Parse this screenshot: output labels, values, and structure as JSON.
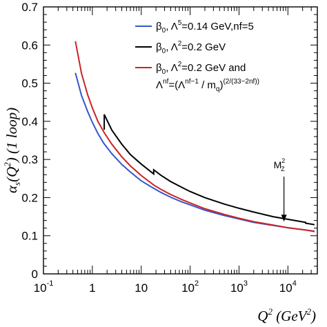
{
  "chart_data": {
    "type": "line",
    "xscale": "log",
    "xlim": [
      0.1,
      40000
    ],
    "ylim": [
      0,
      0.7
    ],
    "grid": false,
    "legend_position": "top-right",
    "xlabel": {
      "main": "Q",
      "sup": "2",
      "unit": " (GeV",
      "unit_sup": "2",
      "close": ")"
    },
    "ylabel": {
      "main": "α",
      "sub": "s",
      "open": "(Q",
      "sup": "2",
      "rest": ") (1 loop)"
    },
    "x_ticks": [
      {
        "base": "10",
        "exp": "-1",
        "value": 0.1
      },
      {
        "base": "1",
        "exp": "",
        "value": 1
      },
      {
        "base": "10",
        "exp": "",
        "value": 10
      },
      {
        "base": "10",
        "exp": "2",
        "value": 100
      },
      {
        "base": "10",
        "exp": "3",
        "value": 1000
      },
      {
        "base": "10",
        "exp": "4",
        "value": 10000
      }
    ],
    "y_ticks": [
      "0",
      "0.1",
      "0.2",
      "0.3",
      "0.4",
      "0.5",
      "0.6",
      "0.7"
    ],
    "y_tick_values": [
      0,
      0.1,
      0.2,
      0.3,
      0.4,
      0.5,
      0.6,
      0.7
    ],
    "series": [
      {
        "legend": {
          "a": "β",
          "a_sub": "0",
          "b": ", Λ",
          "b_sup": "5",
          "c": "=0.14 GeV,nf=5"
        },
        "color": "#3355cc",
        "points": [
          [
            0.45,
            0.527
          ],
          [
            0.6,
            0.468
          ],
          [
            0.8,
            0.426
          ],
          [
            1.0,
            0.397
          ],
          [
            1.3,
            0.368
          ],
          [
            1.7,
            0.343
          ],
          [
            2.5,
            0.315
          ],
          [
            4,
            0.287
          ],
          [
            6,
            0.267
          ],
          [
            10,
            0.244
          ],
          [
            16,
            0.228
          ],
          [
            25,
            0.214
          ],
          [
            40,
            0.201
          ],
          [
            70,
            0.188
          ],
          [
            100,
            0.181
          ],
          [
            200,
            0.167
          ],
          [
            500,
            0.153
          ],
          [
            1000,
            0.144
          ],
          [
            2000,
            0.135
          ],
          [
            5000,
            0.127
          ],
          [
            10000,
            0.121
          ],
          [
            20000,
            0.116
          ],
          [
            35000,
            0.112
          ]
        ]
      },
      {
        "legend": {
          "a": "β",
          "a_sub": "0",
          "b": ", Λ",
          "b_sup": "2",
          "c": "=0.2 GeV"
        },
        "color": "#000000",
        "points": [
          [
            1.75,
            0.378
          ],
          [
            1.75,
            0.418
          ],
          [
            2.5,
            0.377
          ],
          [
            4,
            0.34
          ],
          [
            6,
            0.313
          ],
          [
            10,
            0.288
          ],
          [
            18,
            0.262
          ],
          [
            18,
            0.273
          ],
          [
            25,
            0.259
          ],
          [
            40,
            0.242
          ],
          [
            70,
            0.226
          ],
          [
            100,
            0.216
          ],
          [
            200,
            0.2
          ],
          [
            500,
            0.183
          ],
          [
            1000,
            0.172
          ],
          [
            2000,
            0.162
          ],
          [
            5000,
            0.15
          ],
          [
            10000,
            0.143
          ],
          [
            23000,
            0.135
          ],
          [
            23000,
            0.133
          ],
          [
            35000,
            0.129
          ]
        ]
      },
      {
        "legend": {
          "a": "β",
          "a_sub": "0",
          "b": ", Λ",
          "b_sup": "2",
          "c": "=0.2 GeV and",
          "d": "Λ",
          "d_sup": "nf",
          "e": "=(Λ",
          "e_sup": "nf−1",
          "f": " / m",
          "f_sub": "q",
          "g": ")",
          "g_sup": "(2/(33−2nf))"
        },
        "color": "#cc2222",
        "points": [
          [
            0.45,
            0.61
          ],
          [
            0.6,
            0.526
          ],
          [
            0.8,
            0.47
          ],
          [
            1.0,
            0.435
          ],
          [
            1.3,
            0.4
          ],
          [
            1.75,
            0.37
          ],
          [
            2.5,
            0.34
          ],
          [
            4,
            0.307
          ],
          [
            6,
            0.283
          ],
          [
            10,
            0.258
          ],
          [
            18,
            0.233
          ],
          [
            25,
            0.222
          ],
          [
            40,
            0.208
          ],
          [
            70,
            0.194
          ],
          [
            100,
            0.186
          ],
          [
            200,
            0.171
          ],
          [
            500,
            0.156
          ],
          [
            1000,
            0.146
          ],
          [
            2000,
            0.137
          ],
          [
            5000,
            0.128
          ],
          [
            10000,
            0.121
          ],
          [
            23000,
            0.115
          ],
          [
            35000,
            0.111
          ]
        ]
      }
    ],
    "annotations": [
      {
        "text": "M",
        "sup": "2",
        "sub": "Z",
        "x": 8300,
        "arrow_to_y": 0.137,
        "arrow_from_y": 0.255
      }
    ]
  }
}
